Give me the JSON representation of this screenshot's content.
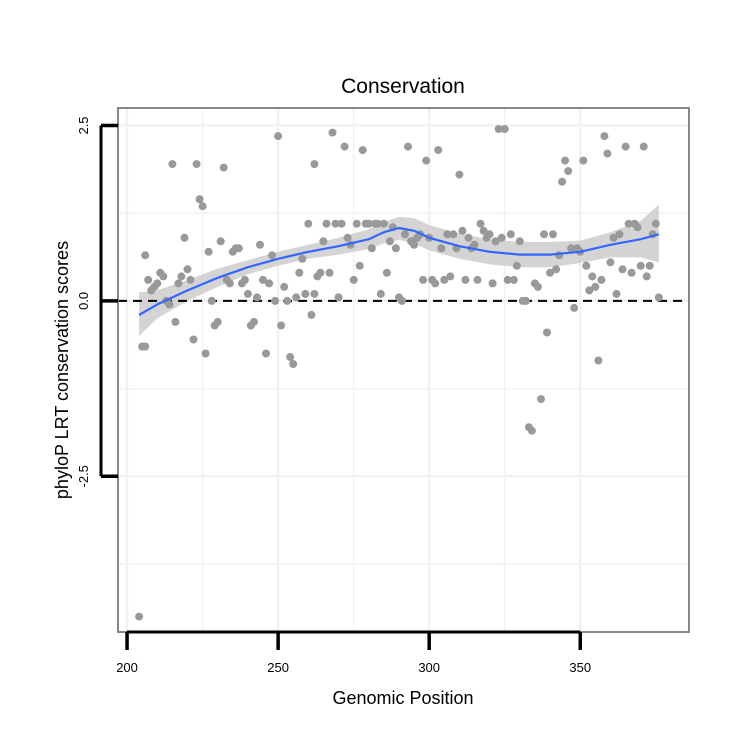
{
  "chart_data": {
    "type": "scatter",
    "title": "Conservation",
    "xlabel": "Genomic Position",
    "ylabel": "phyloP LRT conservation scores",
    "xlim": [
      197,
      386
    ],
    "ylim": [
      -4.72,
      2.75
    ],
    "x_ticks": [
      200,
      250,
      300,
      350
    ],
    "x_tick_labels": [
      "200",
      "250",
      "300",
      "350"
    ],
    "y_ticks": [
      -2.5,
      0.0,
      2.5
    ],
    "y_tick_labels": [
      "-2.5",
      "0.0",
      "2.5"
    ],
    "grid": true,
    "reference_line": {
      "y": 0,
      "style": "dashed",
      "color": "#000000"
    },
    "colors": {
      "points": "#999999",
      "smooth_line": "#3366ff",
      "confidence_band": "#cccccc",
      "panel_border": "#888888",
      "grid": "#f2f2f2"
    },
    "points": [
      [
        204,
        -4.5
      ],
      [
        205,
        -0.65
      ],
      [
        206,
        0.65
      ],
      [
        206,
        -0.65
      ],
      [
        207,
        0.3
      ],
      [
        208,
        0.15
      ],
      [
        209,
        0.2
      ],
      [
        210,
        0.25
      ],
      [
        211,
        0.4
      ],
      [
        212,
        0.35
      ],
      [
        213,
        0.0
      ],
      [
        214,
        -0.05
      ],
      [
        215,
        1.95
      ],
      [
        216,
        -0.3
      ],
      [
        217,
        0.25
      ],
      [
        218,
        0.35
      ],
      [
        219,
        0.9
      ],
      [
        220,
        0.45
      ],
      [
        221,
        0.3
      ],
      [
        222,
        -0.55
      ],
      [
        223,
        1.95
      ],
      [
        224,
        1.45
      ],
      [
        225,
        1.35
      ],
      [
        226,
        -0.75
      ],
      [
        227,
        0.7
      ],
      [
        228,
        0.0
      ],
      [
        229,
        -0.35
      ],
      [
        230,
        -0.3
      ],
      [
        231,
        0.85
      ],
      [
        232,
        1.9
      ],
      [
        233,
        0.3
      ],
      [
        234,
        0.25
      ],
      [
        235,
        0.7
      ],
      [
        236,
        0.75
      ],
      [
        237,
        0.75
      ],
      [
        238,
        0.25
      ],
      [
        239,
        0.3
      ],
      [
        240,
        0.1
      ],
      [
        241,
        -0.35
      ],
      [
        242,
        -0.3
      ],
      [
        243,
        0.05
      ],
      [
        244,
        0.8
      ],
      [
        245,
        0.3
      ],
      [
        246,
        -0.75
      ],
      [
        247,
        0.25
      ],
      [
        248,
        0.65
      ],
      [
        249,
        0.0
      ],
      [
        250,
        2.35
      ],
      [
        251,
        -0.35
      ],
      [
        252,
        0.2
      ],
      [
        253,
        0.0
      ],
      [
        254,
        -0.8
      ],
      [
        255,
        -0.9
      ],
      [
        256,
        0.05
      ],
      [
        257,
        0.4
      ],
      [
        258,
        0.6
      ],
      [
        259,
        0.1
      ],
      [
        260,
        1.1
      ],
      [
        261,
        -0.2
      ],
      [
        262,
        0.1
      ],
      [
        262,
        1.95
      ],
      [
        263,
        0.35
      ],
      [
        264,
        0.4
      ],
      [
        265,
        0.85
      ],
      [
        266,
        1.1
      ],
      [
        267,
        0.4
      ],
      [
        268,
        2.4
      ],
      [
        269,
        1.1
      ],
      [
        270,
        0.05
      ],
      [
        271,
        1.1
      ],
      [
        272,
        2.2
      ],
      [
        273,
        0.9
      ],
      [
        274,
        0.8
      ],
      [
        275,
        0.3
      ],
      [
        276,
        1.1
      ],
      [
        277,
        0.5
      ],
      [
        278,
        2.15
      ],
      [
        279,
        1.1
      ],
      [
        280,
        1.1
      ],
      [
        281,
        0.75
      ],
      [
        282,
        1.1
      ],
      [
        283,
        1.1
      ],
      [
        284,
        0.1
      ],
      [
        285,
        1.1
      ],
      [
        286,
        0.4
      ],
      [
        287,
        0.85
      ],
      [
        288,
        1.05
      ],
      [
        289,
        0.75
      ],
      [
        290,
        0.05
      ],
      [
        291,
        0.0
      ],
      [
        292,
        0.95
      ],
      [
        293,
        2.2
      ],
      [
        294,
        0.85
      ],
      [
        295,
        0.8
      ],
      [
        296,
        0.9
      ],
      [
        297,
        0.95
      ],
      [
        298,
        0.3
      ],
      [
        299,
        2.0
      ],
      [
        300,
        0.9
      ],
      [
        301,
        0.3
      ],
      [
        302,
        0.25
      ],
      [
        303,
        2.15
      ],
      [
        304,
        0.75
      ],
      [
        305,
        0.3
      ],
      [
        306,
        0.95
      ],
      [
        307,
        0.35
      ],
      [
        308,
        0.95
      ],
      [
        309,
        0.75
      ],
      [
        310,
        1.8
      ],
      [
        311,
        1.0
      ],
      [
        312,
        0.3
      ],
      [
        313,
        0.9
      ],
      [
        314,
        0.75
      ],
      [
        315,
        0.8
      ],
      [
        316,
        0.3
      ],
      [
        317,
        1.1
      ],
      [
        318,
        1.0
      ],
      [
        319,
        0.9
      ],
      [
        320,
        0.95
      ],
      [
        321,
        0.25
      ],
      [
        322,
        0.85
      ],
      [
        323,
        2.45
      ],
      [
        324,
        0.9
      ],
      [
        325,
        2.45
      ],
      [
        326,
        0.3
      ],
      [
        327,
        0.95
      ],
      [
        328,
        0.3
      ],
      [
        329,
        0.5
      ],
      [
        330,
        0.85
      ],
      [
        331,
        0.0
      ],
      [
        332,
        0.0
      ],
      [
        333,
        -1.8
      ],
      [
        334,
        -1.85
      ],
      [
        335,
        0.25
      ],
      [
        336,
        0.2
      ],
      [
        337,
        -1.4
      ],
      [
        338,
        0.95
      ],
      [
        339,
        -0.45
      ],
      [
        340,
        0.4
      ],
      [
        341,
        0.95
      ],
      [
        342,
        0.45
      ],
      [
        343,
        0.65
      ],
      [
        344,
        1.7
      ],
      [
        345,
        2.0
      ],
      [
        346,
        1.85
      ],
      [
        347,
        0.75
      ],
      [
        348,
        -0.1
      ],
      [
        349,
        0.75
      ],
      [
        350,
        0.7
      ],
      [
        351,
        2.0
      ],
      [
        352,
        0.5
      ],
      [
        353,
        0.15
      ],
      [
        354,
        0.35
      ],
      [
        355,
        0.2
      ],
      [
        356,
        -0.85
      ],
      [
        357,
        0.3
      ],
      [
        358,
        2.35
      ],
      [
        359,
        2.1
      ],
      [
        360,
        0.55
      ],
      [
        361,
        0.9
      ],
      [
        362,
        0.1
      ],
      [
        363,
        0.95
      ],
      [
        364,
        0.45
      ],
      [
        365,
        2.2
      ],
      [
        366,
        1.1
      ],
      [
        367,
        0.4
      ],
      [
        368,
        1.1
      ],
      [
        369,
        1.05
      ],
      [
        370,
        0.5
      ],
      [
        371,
        2.2
      ],
      [
        372,
        0.35
      ],
      [
        373,
        0.5
      ],
      [
        374,
        0.95
      ],
      [
        375,
        1.1
      ],
      [
        376,
        0.05
      ]
    ],
    "smooth": {
      "x": [
        204,
        210,
        220,
        230,
        240,
        250,
        260,
        270,
        280,
        285,
        290,
        295,
        300,
        310,
        320,
        330,
        340,
        350,
        360,
        370,
        376
      ],
      "y": [
        -0.2,
        -0.05,
        0.15,
        0.33,
        0.48,
        0.6,
        0.7,
        0.78,
        0.88,
        0.98,
        1.04,
        1.0,
        0.9,
        0.78,
        0.7,
        0.66,
        0.66,
        0.7,
        0.8,
        0.88,
        0.95
      ],
      "lower": [
        -0.5,
        -0.25,
        0.0,
        0.2,
        0.38,
        0.5,
        0.6,
        0.66,
        0.74,
        0.82,
        0.87,
        0.82,
        0.72,
        0.6,
        0.52,
        0.48,
        0.48,
        0.54,
        0.62,
        0.62,
        0.55
      ],
      "upper": [
        0.12,
        0.15,
        0.3,
        0.46,
        0.58,
        0.7,
        0.8,
        0.9,
        1.02,
        1.12,
        1.2,
        1.18,
        1.08,
        0.96,
        0.88,
        0.84,
        0.84,
        0.86,
        0.98,
        1.14,
        1.37
      ]
    }
  }
}
